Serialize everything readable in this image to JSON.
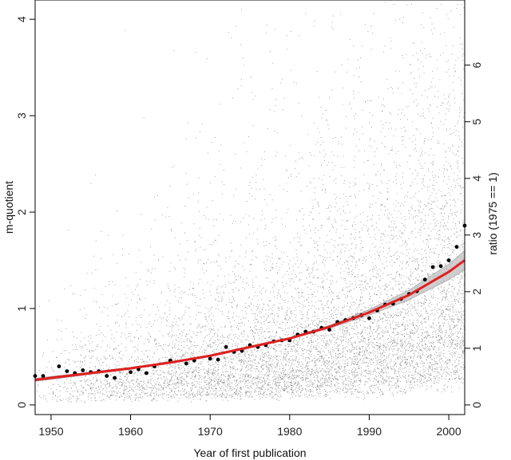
{
  "chart_data": {
    "type": "scatter",
    "xlabel": "Year of first publication",
    "ylabel": "m-quotient",
    "y2label": "ratio (1975 == 1)",
    "xlim": [
      1948,
      2002
    ],
    "ylim": [
      -0.1,
      4.2
    ],
    "y2lim": [
      -0.17,
      7.15
    ],
    "x_ticks": [
      1950,
      1960,
      1970,
      1980,
      1990,
      2000
    ],
    "y_ticks": [
      0,
      1,
      2,
      3,
      4
    ],
    "y2_ticks": [
      0,
      1,
      2,
      3,
      4,
      5,
      6
    ],
    "grid": false,
    "legend": "none",
    "series": [
      {
        "kind": "background-scatter",
        "color": "#555555",
        "description_points": "dense cloud of individual observations, ~10000 points"
      },
      {
        "kind": "yearly-mean",
        "color": "#000000",
        "x": [
          1948,
          1949,
          1951,
          1952,
          1953,
          1954,
          1955,
          1956,
          1957,
          1958,
          1960,
          1961,
          1962,
          1963,
          1965,
          1967,
          1968,
          1970,
          1971,
          1972,
          1973,
          1974,
          1975,
          1976,
          1977,
          1978,
          1979,
          1980,
          1981,
          1982,
          1983,
          1984,
          1985,
          1986,
          1987,
          1988,
          1989,
          1990,
          1991,
          1992,
          1993,
          1994,
          1995,
          1996,
          1997,
          1998,
          1999,
          2000,
          2001,
          2002
        ],
        "y": [
          0.3,
          0.3,
          0.4,
          0.35,
          0.33,
          0.36,
          0.34,
          0.35,
          0.3,
          0.28,
          0.34,
          0.37,
          0.33,
          0.4,
          0.46,
          0.43,
          0.46,
          0.48,
          0.47,
          0.6,
          0.55,
          0.56,
          0.62,
          0.6,
          0.62,
          0.66,
          0.67,
          0.67,
          0.73,
          0.76,
          0.76,
          0.8,
          0.78,
          0.86,
          0.88,
          0.9,
          0.93,
          0.9,
          0.98,
          1.04,
          1.05,
          1.1,
          1.15,
          1.18,
          1.3,
          1.43,
          1.44,
          1.5,
          1.64,
          1.86
        ]
      },
      {
        "kind": "fit-curve",
        "color": "#e02020",
        "x": [
          1948,
          1950,
          1955,
          1960,
          1965,
          1970,
          1975,
          1980,
          1985,
          1990,
          1995,
          2000,
          2002
        ],
        "y": [
          0.26,
          0.28,
          0.33,
          0.38,
          0.44,
          0.51,
          0.6,
          0.69,
          0.81,
          0.96,
          1.14,
          1.38,
          1.5
        ],
        "ci_low": [
          0.245,
          0.265,
          0.318,
          0.37,
          0.43,
          0.5,
          0.59,
          0.68,
          0.795,
          0.93,
          1.09,
          1.3,
          1.4
        ],
        "ci_high": [
          0.275,
          0.295,
          0.342,
          0.39,
          0.45,
          0.52,
          0.61,
          0.7,
          0.825,
          0.99,
          1.19,
          1.46,
          1.6
        ]
      }
    ]
  }
}
